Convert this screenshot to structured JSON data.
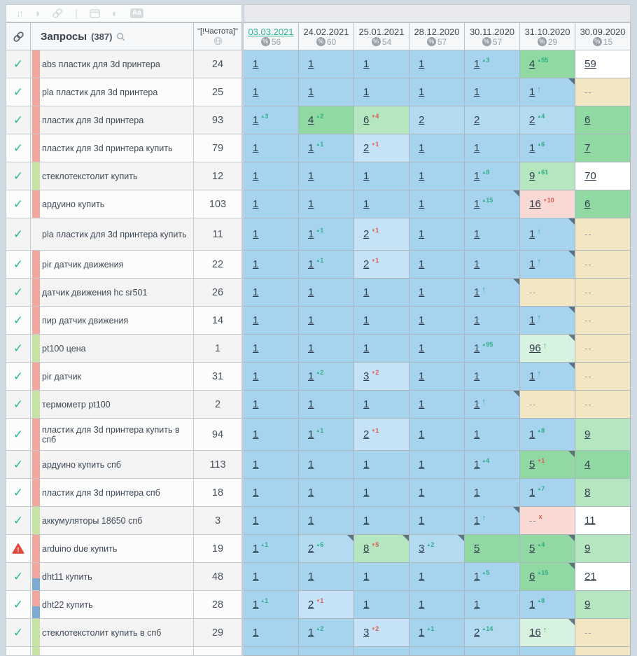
{
  "toolbar": {
    "icons": [
      "sort-icon",
      "contrast-circle-icon",
      "link-icon",
      "separator",
      "panel-icon",
      "half-circle-icon",
      "text-style-icon"
    ]
  },
  "header": {
    "queries_label": "Запросы",
    "queries_count": "(387)",
    "frequency_label": "\"[!Частота]\"",
    "dates": [
      {
        "label": "03.03.2021",
        "share": "56",
        "active": true
      },
      {
        "label": "24.02.2021",
        "share": "60",
        "active": false
      },
      {
        "label": "25.01.2021",
        "share": "54",
        "active": false
      },
      {
        "label": "28.12.2020",
        "share": "57",
        "active": false
      },
      {
        "label": "30.11.2020",
        "share": "57",
        "active": false
      },
      {
        "label": "31.10.2020",
        "share": "29",
        "active": false
      },
      {
        "label": "30.09.2020",
        "share": "15",
        "active": false
      }
    ]
  },
  "palette": {
    "blue": "#a6d3ee",
    "blueLight": "#b2daf1",
    "blueLighter": "#c5e2f6",
    "green": "#90d9a2",
    "greenLight": "#b4e6c0",
    "mint": "#d8f2e0",
    "white": "#ffffff",
    "tan": "#f3e6c3",
    "pink": "#f9d9d4",
    "stripeRed": "#f2a79e",
    "stripeGreen": "#c6e3a3",
    "stripeBlue": "#7ea9d2",
    "checkmark": "#29b796",
    "warning": "#e2493b",
    "deltaUp": "#2fae89",
    "deltaDown": "#e05a4d",
    "activeDate": "#2eb49b"
  },
  "rows": [
    {
      "mark": "check",
      "stripe": "red",
      "query": "abs пластик для 3d принтера",
      "freq": "24",
      "cells": [
        {
          "v": "1",
          "bg": "b"
        },
        {
          "v": "1",
          "bg": "b"
        },
        {
          "v": "1",
          "bg": "b"
        },
        {
          "v": "1",
          "bg": "b"
        },
        {
          "v": "1",
          "bg": "b",
          "d": "u3"
        },
        {
          "v": "4",
          "bg": "g",
          "d": "u55"
        },
        {
          "v": "59",
          "bg": "w"
        }
      ]
    },
    {
      "mark": "check",
      "stripe": "red",
      "query": "pla пластик для 3d принтера",
      "freq": "25",
      "cells": [
        {
          "v": "1",
          "bg": "b"
        },
        {
          "v": "1",
          "bg": "b"
        },
        {
          "v": "1",
          "bg": "b"
        },
        {
          "v": "1",
          "bg": "b"
        },
        {
          "v": "1",
          "bg": "b"
        },
        {
          "v": "1",
          "bg": "b",
          "d": "a",
          "c": 1
        },
        {
          "v": "--",
          "bg": "t"
        }
      ]
    },
    {
      "mark": "check",
      "stripe": "red",
      "query": "пластик для 3d принтера",
      "freq": "93",
      "cells": [
        {
          "v": "1",
          "bg": "b",
          "d": "u3"
        },
        {
          "v": "4",
          "bg": "g",
          "d": "u2"
        },
        {
          "v": "6",
          "bg": "gl",
          "d": "d4"
        },
        {
          "v": "2",
          "bg": "bl"
        },
        {
          "v": "2",
          "bg": "bl"
        },
        {
          "v": "2",
          "bg": "bl",
          "d": "u4"
        },
        {
          "v": "6",
          "bg": "g"
        }
      ]
    },
    {
      "mark": "check",
      "stripe": "red",
      "query": "пластик для 3d принтера купить",
      "freq": "79",
      "cells": [
        {
          "v": "1",
          "bg": "b"
        },
        {
          "v": "1",
          "bg": "b",
          "d": "u1"
        },
        {
          "v": "2",
          "bg": "bll",
          "d": "d1"
        },
        {
          "v": "1",
          "bg": "b"
        },
        {
          "v": "1",
          "bg": "b"
        },
        {
          "v": "1",
          "bg": "b",
          "d": "u6"
        },
        {
          "v": "7",
          "bg": "g"
        }
      ]
    },
    {
      "mark": "check",
      "stripe": "green",
      "query": "стеклотекстолит купить",
      "freq": "12",
      "cells": [
        {
          "v": "1",
          "bg": "b"
        },
        {
          "v": "1",
          "bg": "b"
        },
        {
          "v": "1",
          "bg": "b"
        },
        {
          "v": "1",
          "bg": "b"
        },
        {
          "v": "1",
          "bg": "b",
          "d": "u8"
        },
        {
          "v": "9",
          "bg": "gl",
          "d": "u61"
        },
        {
          "v": "70",
          "bg": "w"
        }
      ]
    },
    {
      "mark": "check",
      "stripe": "red",
      "query": "ардуино купить",
      "freq": "103",
      "cells": [
        {
          "v": "1",
          "bg": "b"
        },
        {
          "v": "1",
          "bg": "b"
        },
        {
          "v": "1",
          "bg": "b"
        },
        {
          "v": "1",
          "bg": "b"
        },
        {
          "v": "1",
          "bg": "b",
          "d": "u15",
          "c": 1
        },
        {
          "v": "16",
          "bg": "p",
          "d": "d10"
        },
        {
          "v": "6",
          "bg": "g"
        }
      ]
    },
    {
      "mark": "check",
      "stripe": "none",
      "query": "pla пластик для 3d принтера купить",
      "freq": "11",
      "tall": true,
      "cells": [
        {
          "v": "1",
          "bg": "b"
        },
        {
          "v": "1",
          "bg": "b",
          "d": "u1"
        },
        {
          "v": "2",
          "bg": "bll",
          "d": "d1"
        },
        {
          "v": "1",
          "bg": "b"
        },
        {
          "v": "1",
          "bg": "b"
        },
        {
          "v": "1",
          "bg": "b",
          "d": "a",
          "c": 1
        },
        {
          "v": "--",
          "bg": "t"
        }
      ]
    },
    {
      "mark": "check",
      "stripe": "red",
      "query": "pir датчик движения",
      "freq": "22",
      "cells": [
        {
          "v": "1",
          "bg": "b"
        },
        {
          "v": "1",
          "bg": "b",
          "d": "u1"
        },
        {
          "v": "2",
          "bg": "bll",
          "d": "d1"
        },
        {
          "v": "1",
          "bg": "b"
        },
        {
          "v": "1",
          "bg": "b"
        },
        {
          "v": "1",
          "bg": "b",
          "d": "a",
          "c": 1
        },
        {
          "v": "--",
          "bg": "t"
        }
      ]
    },
    {
      "mark": "check",
      "stripe": "red",
      "query": "датчик движения hc sr501",
      "freq": "26",
      "cells": [
        {
          "v": "1",
          "bg": "b"
        },
        {
          "v": "1",
          "bg": "b"
        },
        {
          "v": "1",
          "bg": "b"
        },
        {
          "v": "1",
          "bg": "b"
        },
        {
          "v": "1",
          "bg": "b",
          "d": "a",
          "c": 1
        },
        {
          "v": "--",
          "bg": "t"
        },
        {
          "v": "--",
          "bg": "t"
        }
      ]
    },
    {
      "mark": "check",
      "stripe": "red",
      "query": "пир датчик движения",
      "freq": "14",
      "cells": [
        {
          "v": "1",
          "bg": "b"
        },
        {
          "v": "1",
          "bg": "b"
        },
        {
          "v": "1",
          "bg": "b"
        },
        {
          "v": "1",
          "bg": "b"
        },
        {
          "v": "1",
          "bg": "b"
        },
        {
          "v": "1",
          "bg": "b",
          "d": "a",
          "c": 1
        },
        {
          "v": "--",
          "bg": "t"
        }
      ]
    },
    {
      "mark": "check",
      "stripe": "green",
      "query": "pt100 цена",
      "freq": "1",
      "cells": [
        {
          "v": "1",
          "bg": "b"
        },
        {
          "v": "1",
          "bg": "b"
        },
        {
          "v": "1",
          "bg": "b"
        },
        {
          "v": "1",
          "bg": "b"
        },
        {
          "v": "1",
          "bg": "b",
          "d": "u95"
        },
        {
          "v": "96",
          "bg": "m",
          "d": "a",
          "c": 1
        },
        {
          "v": "--",
          "bg": "t"
        }
      ]
    },
    {
      "mark": "check",
      "stripe": "red",
      "query": "pir датчик",
      "freq": "31",
      "cells": [
        {
          "v": "1",
          "bg": "b"
        },
        {
          "v": "1",
          "bg": "b",
          "d": "u2"
        },
        {
          "v": "3",
          "bg": "bll",
          "d": "d2"
        },
        {
          "v": "1",
          "bg": "b"
        },
        {
          "v": "1",
          "bg": "b"
        },
        {
          "v": "1",
          "bg": "b",
          "d": "a",
          "c": 1
        },
        {
          "v": "--",
          "bg": "t"
        }
      ]
    },
    {
      "mark": "check",
      "stripe": "green",
      "query": "термометр pt100",
      "freq": "2",
      "cells": [
        {
          "v": "1",
          "bg": "b"
        },
        {
          "v": "1",
          "bg": "b"
        },
        {
          "v": "1",
          "bg": "b"
        },
        {
          "v": "1",
          "bg": "b"
        },
        {
          "v": "1",
          "bg": "b",
          "d": "a",
          "c": 1
        },
        {
          "v": "--",
          "bg": "t"
        },
        {
          "v": "--",
          "bg": "t"
        }
      ]
    },
    {
      "mark": "check",
      "stripe": "red",
      "query": "пластик для 3d принтера купить в спб",
      "freq": "94",
      "tall": true,
      "cells": [
        {
          "v": "1",
          "bg": "b"
        },
        {
          "v": "1",
          "bg": "b",
          "d": "u1"
        },
        {
          "v": "2",
          "bg": "bll",
          "d": "d1"
        },
        {
          "v": "1",
          "bg": "b"
        },
        {
          "v": "1",
          "bg": "b"
        },
        {
          "v": "1",
          "bg": "b",
          "d": "u8"
        },
        {
          "v": "9",
          "bg": "gl"
        }
      ]
    },
    {
      "mark": "check",
      "stripe": "red",
      "query": "ардуино купить спб",
      "freq": "113",
      "cells": [
        {
          "v": "1",
          "bg": "b"
        },
        {
          "v": "1",
          "bg": "b"
        },
        {
          "v": "1",
          "bg": "b"
        },
        {
          "v": "1",
          "bg": "b"
        },
        {
          "v": "1",
          "bg": "b",
          "d": "u4"
        },
        {
          "v": "5",
          "bg": "g",
          "d": "d1",
          "c": 1
        },
        {
          "v": "4",
          "bg": "g"
        }
      ]
    },
    {
      "mark": "check",
      "stripe": "red",
      "query": "пластик для 3d принтера спб",
      "freq": "18",
      "cells": [
        {
          "v": "1",
          "bg": "b"
        },
        {
          "v": "1",
          "bg": "b"
        },
        {
          "v": "1",
          "bg": "b"
        },
        {
          "v": "1",
          "bg": "b"
        },
        {
          "v": "1",
          "bg": "b"
        },
        {
          "v": "1",
          "bg": "b",
          "d": "u7"
        },
        {
          "v": "8",
          "bg": "gl"
        }
      ]
    },
    {
      "mark": "check",
      "stripe": "green",
      "query": "аккумуляторы 18650 спб",
      "freq": "3",
      "cells": [
        {
          "v": "1",
          "bg": "b"
        },
        {
          "v": "1",
          "bg": "b"
        },
        {
          "v": "1",
          "bg": "b"
        },
        {
          "v": "1",
          "bg": "b"
        },
        {
          "v": "1",
          "bg": "b",
          "d": "a",
          "c": 1
        },
        {
          "v": "--",
          "bg": "p",
          "d": "x"
        },
        {
          "v": "11",
          "bg": "w"
        }
      ]
    },
    {
      "mark": "warn",
      "stripe": "red",
      "query": "arduino due купить",
      "freq": "19",
      "cells": [
        {
          "v": "1",
          "bg": "b",
          "d": "u1"
        },
        {
          "v": "2",
          "bg": "bl",
          "d": "u6",
          "c": 1
        },
        {
          "v": "8",
          "bg": "gl",
          "d": "d5",
          "c": 1
        },
        {
          "v": "3",
          "bg": "bl",
          "d": "u2",
          "c": 1
        },
        {
          "v": "5",
          "bg": "g"
        },
        {
          "v": "5",
          "bg": "g",
          "d": "u4",
          "c": 1
        },
        {
          "v": "9",
          "bg": "gl"
        }
      ]
    },
    {
      "mark": "check",
      "stripe": "red-blue",
      "query": "dht11 купить",
      "freq": "48",
      "cells": [
        {
          "v": "1",
          "bg": "b"
        },
        {
          "v": "1",
          "bg": "b"
        },
        {
          "v": "1",
          "bg": "b"
        },
        {
          "v": "1",
          "bg": "b"
        },
        {
          "v": "1",
          "bg": "b",
          "d": "u5"
        },
        {
          "v": "6",
          "bg": "g",
          "d": "u15",
          "c": 1
        },
        {
          "v": "21",
          "bg": "w"
        }
      ]
    },
    {
      "mark": "check",
      "stripe": "red-blue",
      "query": "dht22 купить",
      "freq": "28",
      "cells": [
        {
          "v": "1",
          "bg": "b",
          "d": "u1"
        },
        {
          "v": "2",
          "bg": "bll",
          "d": "d1"
        },
        {
          "v": "1",
          "bg": "b"
        },
        {
          "v": "1",
          "bg": "b"
        },
        {
          "v": "1",
          "bg": "b"
        },
        {
          "v": "1",
          "bg": "b",
          "d": "u8"
        },
        {
          "v": "9",
          "bg": "gl"
        }
      ]
    },
    {
      "mark": "check",
      "stripe": "green",
      "query": "стеклотекстолит купить в спб",
      "freq": "29",
      "cells": [
        {
          "v": "1",
          "bg": "b"
        },
        {
          "v": "1",
          "bg": "b",
          "d": "u2"
        },
        {
          "v": "3",
          "bg": "bll",
          "d": "d2"
        },
        {
          "v": "1",
          "bg": "b",
          "d": "u1"
        },
        {
          "v": "2",
          "bg": "bl",
          "d": "u14"
        },
        {
          "v": "16",
          "bg": "m",
          "d": "a",
          "c": 1
        },
        {
          "v": "--",
          "bg": "t"
        }
      ]
    },
    {
      "mark": "",
      "stripe": "green",
      "query": "",
      "freq": "",
      "partial": true,
      "cells": [
        {
          "v": "",
          "bg": "b"
        },
        {
          "v": "",
          "bg": "b"
        },
        {
          "v": "",
          "bg": "b"
        },
        {
          "v": "",
          "bg": "b"
        },
        {
          "v": "",
          "bg": "b"
        },
        {
          "v": "",
          "bg": "b"
        },
        {
          "v": "",
          "bg": "t"
        }
      ]
    }
  ]
}
